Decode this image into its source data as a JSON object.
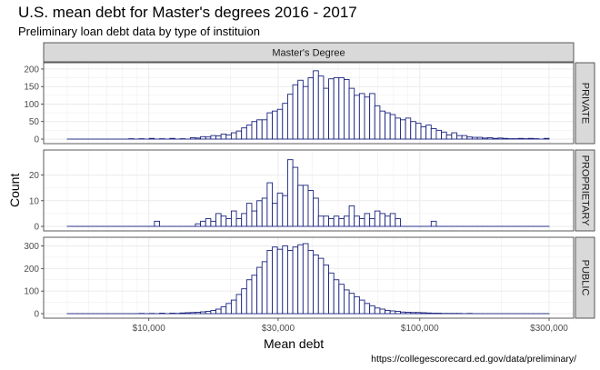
{
  "title": "U.S. mean debt for Master's degrees 2016 - 2017",
  "subtitle": "Preliminary loan debt data by type of instituion",
  "caption": "https://collegescorecard.ed.gov/data/preliminary/",
  "colors": {
    "bar_stroke": "#1a237e",
    "bar_fill": "#ffffff",
    "panel_bg": "#ffffff",
    "grid": "#ebebeb",
    "strip_bg": "#d9d9d9",
    "strip_border": "#333333"
  },
  "chart_data": {
    "type": "bar",
    "subtype": "histogram",
    "xlabel": "Mean debt",
    "ylabel": "Count",
    "x_scale": "log10",
    "xlim": [
      5000,
      300000
    ],
    "x_ticks": [
      10000,
      30000,
      100000,
      300000
    ],
    "x_tick_labels": [
      "$10,000",
      "$30,000",
      "$100,000",
      "$300,000"
    ],
    "column_strip": "Master's Degree",
    "grid": true,
    "panels": [
      {
        "name": "PRIVATE",
        "ylim": [
          0,
          205
        ],
        "y_ticks": [
          0,
          50,
          100,
          150,
          200
        ],
        "counts": [
          0,
          0,
          0,
          0,
          0,
          0,
          0,
          0,
          0,
          0,
          0,
          0,
          1,
          0,
          1,
          0,
          2,
          0,
          1,
          0,
          2,
          0,
          1,
          0,
          4,
          3,
          7,
          6,
          10,
          9,
          14,
          12,
          18,
          23,
          32,
          40,
          50,
          55,
          55,
          75,
          80,
          85,
          102,
          128,
          155,
          168,
          150,
          175,
          195,
          180,
          145,
          172,
          175,
          175,
          170,
          145,
          125,
          130,
          120,
          130,
          95,
          80,
          75,
          70,
          60,
          55,
          60,
          50,
          45,
          35,
          40,
          30,
          25,
          20,
          12,
          18,
          10,
          10,
          6,
          5,
          5,
          3,
          4,
          2,
          3,
          2,
          1,
          1,
          2,
          1,
          2,
          1,
          0,
          2
        ]
      },
      {
        "name": "PROPRIETARY",
        "ylim": [
          0,
          28
        ],
        "y_ticks": [
          0,
          10,
          20
        ],
        "counts": [
          0,
          0,
          0,
          0,
          0,
          0,
          0,
          0,
          0,
          0,
          0,
          0,
          0,
          0,
          0,
          0,
          0,
          2,
          0,
          0,
          0,
          0,
          0,
          0,
          0,
          1,
          2,
          3,
          2,
          5,
          4,
          3,
          6,
          3,
          5,
          9,
          6,
          10,
          11,
          17,
          9,
          13,
          12,
          26,
          23,
          16,
          16,
          14,
          11,
          4,
          4,
          3,
          4,
          3,
          4,
          8,
          4,
          3,
          5,
          3,
          6,
          5,
          4,
          5,
          3,
          0,
          0,
          0,
          0,
          0,
          0,
          2,
          0,
          0,
          0,
          0,
          0,
          0,
          0,
          0,
          0,
          0,
          0,
          0,
          0,
          0,
          0,
          0,
          0,
          0,
          0,
          0,
          0,
          0
        ]
      },
      {
        "name": "PUBLIC",
        "ylim": [
          0,
          318
        ],
        "y_ticks": [
          0,
          100,
          200,
          300
        ],
        "counts": [
          0,
          0,
          0,
          0,
          0,
          0,
          0,
          0,
          0,
          0,
          0,
          0,
          0,
          0,
          1,
          0,
          1,
          0,
          2,
          0,
          2,
          1,
          3,
          4,
          5,
          6,
          8,
          10,
          14,
          20,
          30,
          45,
          60,
          85,
          110,
          150,
          170,
          205,
          230,
          280,
          295,
          285,
          300,
          280,
          295,
          305,
          310,
          280,
          260,
          245,
          215,
          180,
          150,
          130,
          105,
          90,
          75,
          60,
          45,
          35,
          25,
          20,
          14,
          12,
          10,
          7,
          6,
          5,
          5,
          4,
          3,
          2,
          2,
          1,
          1,
          1,
          1,
          0,
          1,
          0,
          0,
          0,
          0,
          0,
          0,
          0,
          0,
          0,
          0,
          0,
          0,
          0,
          0,
          0
        ]
      }
    ],
    "bins": {
      "count": 94,
      "log10_min": 3.699,
      "log10_max": 5.477
    }
  }
}
